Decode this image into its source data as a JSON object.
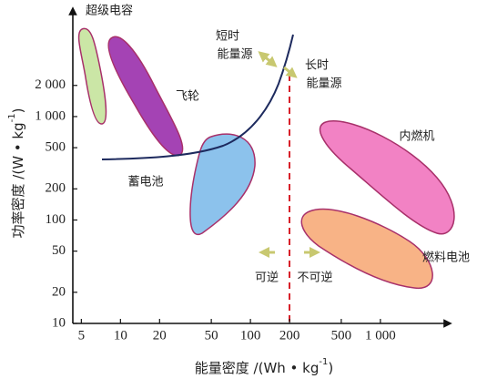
{
  "chart_data": {
    "type": "region",
    "x_label": {
      "text": "能量密度 /(Wh • kg",
      "sup": "-1",
      "close": ")"
    },
    "y_label": {
      "text": "功率密度 /(W • kg",
      "sup": "-1",
      "close": ")"
    },
    "xscale": "log",
    "yscale": "log",
    "xlim": [
      4.3,
      3200
    ],
    "ylim": [
      10,
      10500
    ],
    "xticks": [
      5,
      10,
      20,
      50,
      100,
      200,
      500,
      {
        "value": 1000,
        "label": "1 000"
      }
    ],
    "yticks": [
      10,
      20,
      50,
      100,
      200,
      500,
      {
        "value": 1000,
        "label": "1 000"
      },
      {
        "value": 2000,
        "label": "2 000"
      }
    ],
    "annotations": [
      "超级电容",
      "飞轮",
      "蓄电池",
      "内燃机",
      "燃料电池",
      "短时",
      "能量源",
      "长时",
      "能量源",
      "可逆",
      "不可逆"
    ]
  }
}
